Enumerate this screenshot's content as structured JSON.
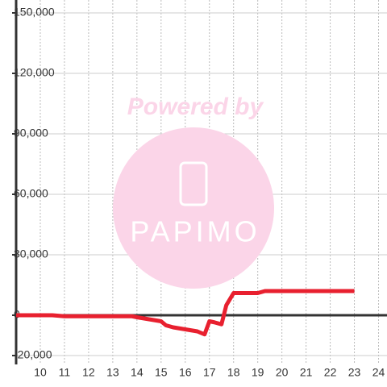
{
  "chart_data": {
    "type": "line",
    "watermark": [
      "Powered by",
      "PAPIMO"
    ],
    "x": [
      9,
      10,
      10.5,
      11,
      12,
      13,
      13.8,
      14,
      14.5,
      15,
      15.2,
      15.5,
      16,
      16.5,
      16.8,
      17,
      17.2,
      17.5,
      17.7,
      18,
      19,
      19.3,
      20,
      23
    ],
    "series": [
      {
        "color": "#e8202f",
        "values": [
          0,
          0,
          0,
          -500,
          -500,
          -500,
          -500,
          -1000,
          -2000,
          -3000,
          -5000,
          -6000,
          -7000,
          -8000,
          -9500,
          -3000,
          -3500,
          -4500,
          5000,
          11000,
          11000,
          12000,
          12000,
          12000
        ]
      }
    ],
    "xlim": [
      9,
      24.35
    ],
    "xticks": [
      10,
      11,
      12,
      13,
      14,
      15,
      16,
      17,
      18,
      19,
      20,
      21,
      22,
      23,
      24
    ],
    "ylim": [
      -20000,
      150000
    ],
    "yticks": [
      {
        "value": 150000,
        "label": "150,000"
      },
      {
        "value": 120000,
        "label": "120,000"
      },
      {
        "value": 90000,
        "label": "90,000"
      },
      {
        "value": 60000,
        "label": "60,000"
      },
      {
        "value": 30000,
        "label": "30,000"
      },
      0,
      {
        "value": -20000,
        "label": "-20,000"
      }
    ],
    "grid": true
  }
}
